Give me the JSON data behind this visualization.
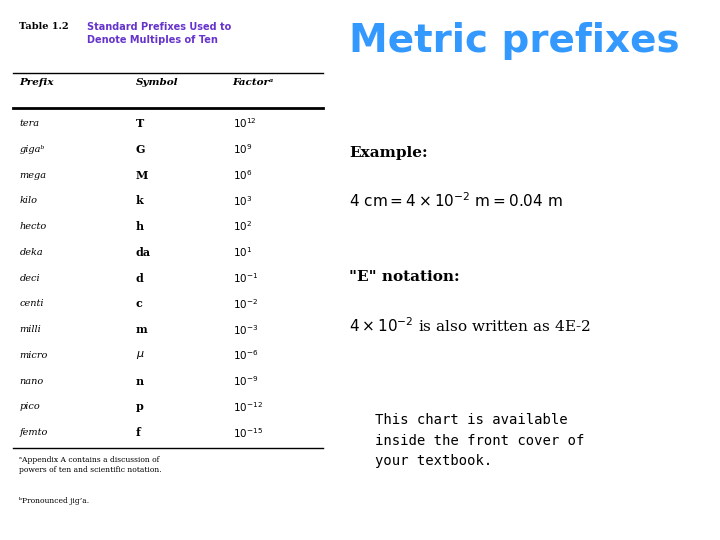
{
  "title": "Metric prefixes",
  "title_color": "#3399FF",
  "title_fontsize": 28,
  "table_title_color": "#6633CC",
  "col_headers": [
    "Prefix",
    "Symbol",
    "Factorᵃ"
  ],
  "rows": [
    [
      "tera",
      "T",
      "$10^{12}$"
    ],
    [
      "gigaᵇ",
      "G",
      "$10^{9}$"
    ],
    [
      "mega",
      "M",
      "$10^{6}$"
    ],
    [
      "kilo",
      "k",
      "$10^{3}$"
    ],
    [
      "hecto",
      "h",
      "$10^{2}$"
    ],
    [
      "deka",
      "da",
      "$10^{1}$"
    ],
    [
      "deci",
      "d",
      "$10^{-1}$"
    ],
    [
      "centi",
      "c",
      "$10^{-2}$"
    ],
    [
      "milli",
      "m",
      "$10^{-3}$"
    ],
    [
      "micro",
      "$\\mu$",
      "$10^{-6}$"
    ],
    [
      "nano",
      "n",
      "$10^{-9}$"
    ],
    [
      "pico",
      "p",
      "$10^{-12}$"
    ],
    [
      "femto",
      "f",
      "$10^{-15}$"
    ]
  ],
  "footnote_a": "ᵃAppendix A contains a discussion of\npowers of ten and scientific notation.",
  "footnote_b": "ᵇPronounced jig’a.",
  "example_label": "Example:",
  "example_eq": "$4 \\mathrm{\\ cm} = 4 \\times 10^{-2} \\mathrm{\\ m} = 0.04 \\mathrm{\\ m}$",
  "notation_label": "\"E\" notation:",
  "notation_eq": "$4 \\times 10^{-2}$ is also written as 4E-2",
  "note_text": "This chart is available\ninside the front cover of\nyour textbook.",
  "bg_color": "#FFFFFF",
  "text_color": "#000000",
  "line_color": "#000000"
}
